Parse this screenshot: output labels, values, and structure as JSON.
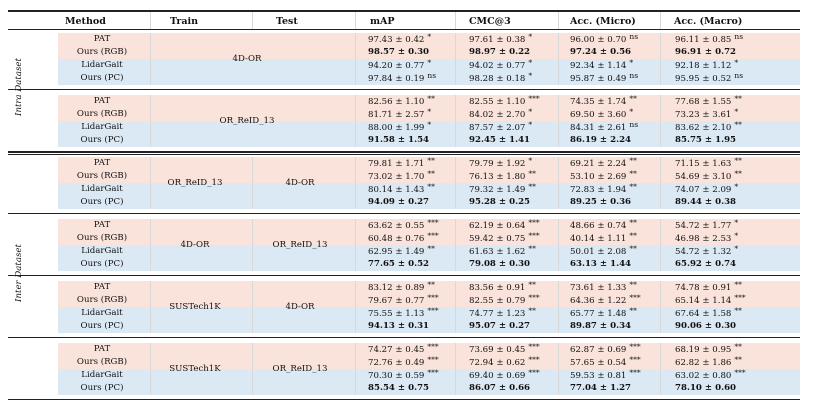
{
  "headers": {
    "method": "Method",
    "train": "Train",
    "test": "Test",
    "map": "mAP",
    "cmc3": "CMC@3",
    "acc_micro": "Acc. (Micro)",
    "acc_macro": "Acc. (Macro)"
  },
  "sections": {
    "intra": "Intra Dataset",
    "inter": "Inter Dataset"
  },
  "groups": [
    {
      "train": "4D-OR",
      "test": "",
      "merged": true,
      "rows": [
        {
          "method": "PAT",
          "shade": "pink",
          "bold": false,
          "map": "97.43 ± 0.42",
          "map_sig": "*",
          "cmc3": "97.61 ± 0.38",
          "cmc3_sig": "*",
          "micro": "96.00 ± 0.70",
          "micro_sig": "ns",
          "macro": "96.11 ± 0.85",
          "macro_sig": "ns"
        },
        {
          "method": "Ours (RGB)",
          "shade": "pink",
          "bold": true,
          "map": "98.57 ± 0.30",
          "map_sig": "",
          "cmc3": "98.97 ± 0.22",
          "cmc3_sig": "",
          "micro": "97.24 ± 0.56",
          "micro_sig": "",
          "macro": "96.91 ± 0.72",
          "macro_sig": ""
        },
        {
          "method": "LidarGait",
          "shade": "blue",
          "bold": false,
          "map": "94.20 ± 0.77",
          "map_sig": "*",
          "cmc3": "94.02 ± 0.77",
          "cmc3_sig": "*",
          "micro": "92.34 ± 1.14",
          "micro_sig": "*",
          "macro": "92.18 ± 1.12",
          "macro_sig": "*"
        },
        {
          "method": "Ours (PC)",
          "shade": "blue",
          "bold": false,
          "map": "97.84 ± 0.19",
          "map_sig": "ns",
          "cmc3": "98.28 ± 0.18",
          "cmc3_sig": "*",
          "micro": "95.87 ± 0.49",
          "micro_sig": "ns",
          "macro": "95.95 ± 0.52",
          "macro_sig": "ns"
        }
      ]
    },
    {
      "train": "OR_ReID_13",
      "test": "",
      "merged": true,
      "rows": [
        {
          "method": "PAT",
          "shade": "pink",
          "bold": false,
          "map": "82.56 ± 1.10",
          "map_sig": "**",
          "cmc3": "82.55 ± 1.10",
          "cmc3_sig": "***",
          "micro": "74.35 ± 1.74",
          "micro_sig": "**",
          "macro": "77.68 ± 1.55",
          "macro_sig": "**"
        },
        {
          "method": "Ours (RGB)",
          "shade": "pink",
          "bold": false,
          "map": "81.71 ± 2.57",
          "map_sig": "*",
          "cmc3": "84.02 ± 2.70",
          "cmc3_sig": "*",
          "micro": "69.50 ± 3.60",
          "micro_sig": "*",
          "macro": "73.23 ± 3.61",
          "macro_sig": "*"
        },
        {
          "method": "LidarGait",
          "shade": "blue",
          "bold": false,
          "map": "88.00 ± 1.99",
          "map_sig": "*",
          "cmc3": "87.57 ± 2.07",
          "cmc3_sig": "*",
          "micro": "84.31 ± 2.61",
          "micro_sig": "ns",
          "macro": "83.62 ± 2.10",
          "macro_sig": "**"
        },
        {
          "method": "Ours (PC)",
          "shade": "blue",
          "bold": true,
          "map": "91.58 ± 1.54",
          "map_sig": "",
          "cmc3": "92.45 ± 1.41",
          "cmc3_sig": "",
          "micro": "86.19 ± 2.24",
          "micro_sig": "",
          "macro": "85.75 ± 1.95",
          "macro_sig": ""
        }
      ]
    },
    {
      "train": "OR_ReID_13",
      "test": "4D-OR",
      "merged": false,
      "rows": [
        {
          "method": "PAT",
          "shade": "pink",
          "bold": false,
          "map": "79.81 ± 1.71",
          "map_sig": "**",
          "cmc3": "79.79 ± 1.92",
          "cmc3_sig": "*",
          "micro": "69.21 ± 2.24",
          "micro_sig": "**",
          "macro": "71.15 ± 1.63",
          "macro_sig": "**"
        },
        {
          "method": "Ours (RGB)",
          "shade": "pink",
          "bold": false,
          "map": "73.02 ± 1.70",
          "map_sig": "**",
          "cmc3": "76.13 ± 1.80",
          "cmc3_sig": "**",
          "micro": "53.10 ± 2.69",
          "micro_sig": "**",
          "macro": "54.69 ± 3.10",
          "macro_sig": "**"
        },
        {
          "method": "LidarGait",
          "shade": "blue",
          "bold": false,
          "map": "80.14 ± 1.43",
          "map_sig": "**",
          "cmc3": "79.32 ± 1.49",
          "cmc3_sig": "**",
          "micro": "72.83 ± 1.94",
          "micro_sig": "**",
          "macro": "74.07 ± 2.09",
          "macro_sig": "*"
        },
        {
          "method": "Ours (PC)",
          "shade": "blue",
          "bold": true,
          "map": "94.09 ± 0.27",
          "map_sig": "",
          "cmc3": "95.28 ± 0.25",
          "cmc3_sig": "",
          "micro": "89.25 ± 0.36",
          "micro_sig": "",
          "macro": "89.44 ± 0.38",
          "macro_sig": ""
        }
      ]
    },
    {
      "train": "4D-OR",
      "test": "OR_ReID_13",
      "merged": false,
      "rows": [
        {
          "method": "PAT",
          "shade": "pink",
          "bold": false,
          "map": "63.62 ± 0.55",
          "map_sig": "***",
          "cmc3": "62.19 ± 0.64",
          "cmc3_sig": "***",
          "micro": "48.66 ± 0.74",
          "micro_sig": "**",
          "macro": "54.72 ± 1.77",
          "macro_sig": "*"
        },
        {
          "method": "Ours (RGB)",
          "shade": "pink",
          "bold": false,
          "map": "60.48 ± 0.76",
          "map_sig": "***",
          "cmc3": "59.42 ± 0.75",
          "cmc3_sig": "***",
          "micro": "40.14 ± 1.11",
          "micro_sig": "**",
          "macro": "46.98 ± 2.53",
          "macro_sig": "*"
        },
        {
          "method": "LidarGait",
          "shade": "blue",
          "bold": false,
          "map": "62.95 ± 1.49",
          "map_sig": "**",
          "cmc3": "61.63 ± 1.62",
          "cmc3_sig": "**",
          "micro": "50.01 ± 2.08",
          "micro_sig": "**",
          "macro": "54.72 ± 1.32",
          "macro_sig": "*"
        },
        {
          "method": "Ours (PC)",
          "shade": "blue",
          "bold": true,
          "map": "77.65 ± 0.52",
          "map_sig": "",
          "cmc3": "79.08 ± 0.30",
          "cmc3_sig": "",
          "micro": "63.13 ± 1.44",
          "micro_sig": "",
          "macro": "65.92 ± 0.74",
          "macro_sig": ""
        }
      ]
    },
    {
      "train": "SUSTech1K",
      "test": "4D-OR",
      "merged": false,
      "rows": [
        {
          "method": "PAT",
          "shade": "pink",
          "bold": false,
          "map": "83.12 ± 0.89",
          "map_sig": "**",
          "cmc3": "83.56 ± 0.91",
          "cmc3_sig": "**",
          "micro": "73.61 ± 1.33",
          "micro_sig": "**",
          "macro": "74.78 ± 0.91",
          "macro_sig": "**"
        },
        {
          "method": "Ours (RGB)",
          "shade": "pink",
          "bold": false,
          "map": "79.67 ± 0.77",
          "map_sig": "***",
          "cmc3": "82.55 ± 0.79",
          "cmc3_sig": "***",
          "micro": "64.36 ± 1.22",
          "micro_sig": "***",
          "macro": "65.14 ± 1.14",
          "macro_sig": "***"
        },
        {
          "method": "LidarGait",
          "shade": "blue",
          "bold": false,
          "map": "75.55 ± 1.13",
          "map_sig": "***",
          "cmc3": "74.77 ± 1.23",
          "cmc3_sig": "**",
          "micro": "65.77 ± 1.48",
          "micro_sig": "**",
          "macro": "67.64 ± 1.58",
          "macro_sig": "**"
        },
        {
          "method": "Ours (PC)",
          "shade": "blue",
          "bold": true,
          "map": "94.13 ± 0.31",
          "map_sig": "",
          "cmc3": "95.07 ± 0.27",
          "cmc3_sig": "",
          "micro": "89.87 ± 0.34",
          "micro_sig": "",
          "macro": "90.06 ± 0.30",
          "macro_sig": ""
        }
      ]
    },
    {
      "train": "SUSTech1K",
      "test": "OR_ReID_13",
      "merged": false,
      "rows": [
        {
          "method": "PAT",
          "shade": "pink",
          "bold": false,
          "map": "74.27 ± 0.45",
          "map_sig": "***",
          "cmc3": "73.69 ± 0.45",
          "cmc3_sig": "***",
          "micro": "62.87 ± 0.69",
          "micro_sig": "***",
          "macro": "68.19 ± 0.95",
          "macro_sig": "**"
        },
        {
          "method": "Ours (RGB)",
          "shade": "pink",
          "bold": false,
          "map": "72.76 ± 0.49",
          "map_sig": "***",
          "cmc3": "72.94 ± 0.62",
          "cmc3_sig": "***",
          "micro": "57.65 ± 0.54",
          "micro_sig": "***",
          "macro": "62.82 ± 1.86",
          "macro_sig": "**"
        },
        {
          "method": "LidarGait",
          "shade": "blue",
          "bold": false,
          "map": "70.30 ± 0.59",
          "map_sig": "***",
          "cmc3": "69.40 ± 0.69",
          "cmc3_sig": "***",
          "micro": "59.53 ± 0.81",
          "micro_sig": "***",
          "macro": "63.02 ± 0.80",
          "macro_sig": "***"
        },
        {
          "method": "Ours (PC)",
          "shade": "blue",
          "bold": true,
          "map": "85.54 ± 0.75",
          "map_sig": "",
          "cmc3": "86.07 ± 0.66",
          "cmc3_sig": "",
          "micro": "77.04 ± 1.27",
          "micro_sig": "",
          "macro": "78.10 ± 0.60",
          "macro_sig": ""
        }
      ]
    }
  ]
}
